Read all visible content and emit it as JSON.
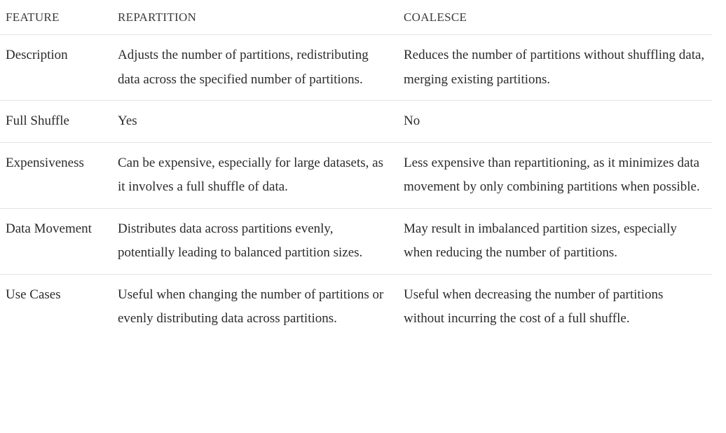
{
  "table": {
    "headers": [
      "FEATURE",
      "REPARTITION",
      "COALESCE"
    ],
    "rows": [
      {
        "feature": "Description",
        "repartition": "Adjusts the number of partitions, redistributing data across the specified number of partitions.",
        "coalesce": "Reduces the number of partitions without shuffling data, merging existing partitions."
      },
      {
        "feature": "Full Shuffle",
        "repartition": "Yes",
        "coalesce": "No"
      },
      {
        "feature": "Expensiveness",
        "repartition": "Can be expensive, especially for large datasets, as it involves a full shuffle of data.",
        "coalesce": "Less expensive than repartitioning, as it minimizes data movement by only combining partitions when possible."
      },
      {
        "feature": "Data Movement",
        "repartition": "Distributes data across partitions evenly, potentially leading to balanced partition sizes.",
        "coalesce": "May result in imbalanced partition sizes, especially when reducing the number of partitions."
      },
      {
        "feature": "Use Cases",
        "repartition": "Useful when changing the number of partitions or evenly distributing data across partitions.",
        "coalesce": "Useful when decreasing the number of partitions without incurring the cost of a full shuffle."
      }
    ]
  }
}
